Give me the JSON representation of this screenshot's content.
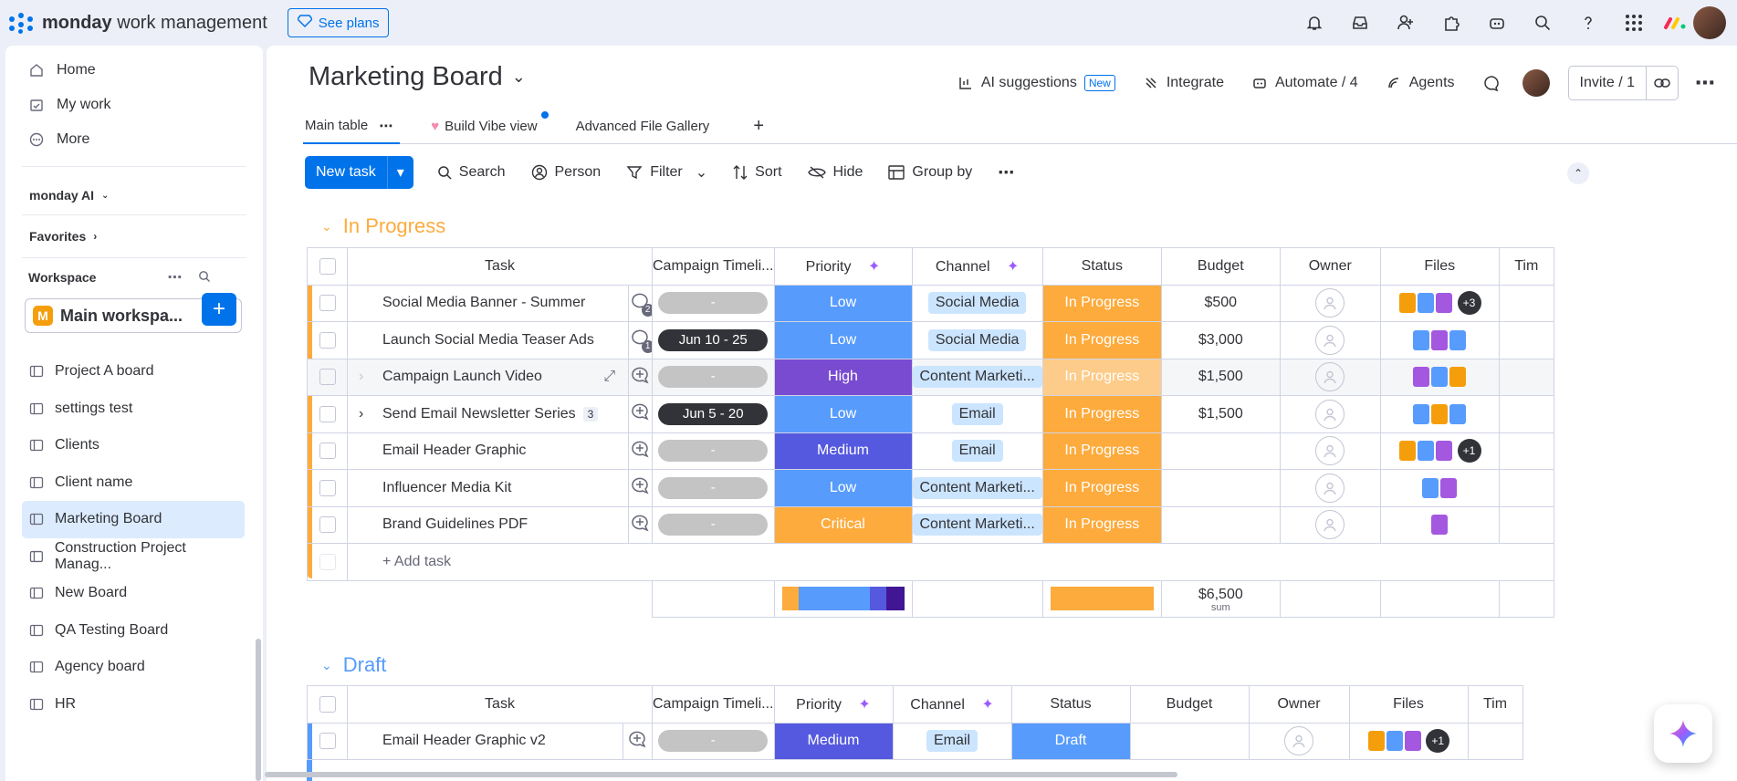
{
  "app": {
    "brand_bold": "monday",
    "brand_rest": " work management",
    "see_plans": "See plans"
  },
  "sidebar": {
    "nav": [
      {
        "label": "Home",
        "icon": "home-icon"
      },
      {
        "label": "My work",
        "icon": "calendar-check-icon"
      },
      {
        "label": "More",
        "icon": "more-circle-icon"
      }
    ],
    "monday_ai": "monday AI",
    "favorites": "Favorites",
    "workspace_label": "Workspace",
    "workspace_name": "Main workspa...",
    "workspace_badge": "M",
    "boards": [
      "Project A board",
      "settings test",
      "Clients",
      "Client name",
      "Marketing Board",
      "Construction Project Manag...",
      "New Board",
      "QA Testing Board",
      "Agency board",
      "HR"
    ]
  },
  "board": {
    "title": "Marketing Board",
    "ai_suggestions": "AI suggestions",
    "new_tag": "New",
    "integrate": "Integrate",
    "automate": "Automate / 4",
    "agents": "Agents",
    "invite": "Invite / 1",
    "tabs": [
      "Main table",
      "Build Vibe view",
      "Advanced File Gallery"
    ],
    "toolbar": {
      "new_task": "New task",
      "search": "Search",
      "person": "Person",
      "filter": "Filter",
      "sort": "Sort",
      "hide": "Hide",
      "group_by": "Group by"
    }
  },
  "columns": [
    "Task",
    "Campaign Timeli...",
    "Priority",
    "Channel",
    "Status",
    "Budget",
    "Owner",
    "Files",
    "Tim"
  ],
  "colors": {
    "in_progress": "#fdab3d",
    "draft": "#579bfc",
    "low": "#579bfc",
    "high": "#784bd1",
    "medium": "#5559df",
    "critical": "#fdab3d",
    "accent": "#0073ea"
  },
  "groups": [
    {
      "title": "In Progress",
      "color": "#fdab3d",
      "rows": [
        {
          "task": "Social Media Banner - Summer",
          "updates": "2",
          "timeline": "-",
          "priority": "Low",
          "channel": "Social Media",
          "status": "In Progress",
          "budget": "$500",
          "files_more": "+3"
        },
        {
          "task": "Launch Social Media Teaser Ads",
          "updates": "1",
          "timeline": "Jun 10 - 25",
          "priority": "Low",
          "channel": "Social Media",
          "status": "In Progress",
          "budget": "$3,000",
          "files_more": ""
        },
        {
          "task": "Campaign Launch Video",
          "updates": "",
          "timeline": "-",
          "priority": "High",
          "channel": "Content Marketi...",
          "status": "In Progress",
          "budget": "$1,500",
          "files_more": ""
        },
        {
          "task": "Send Email Newsletter Series",
          "subitems": "3",
          "updates": "",
          "timeline": "Jun 5 - 20",
          "priority": "Low",
          "channel": "Email",
          "status": "In Progress",
          "budget": "$1,500",
          "files_more": ""
        },
        {
          "task": "Email Header Graphic",
          "updates": "",
          "timeline": "-",
          "priority": "Medium",
          "channel": "Email",
          "status": "In Progress",
          "budget": "",
          "files_more": "+1"
        },
        {
          "task": "Influencer Media Kit",
          "updates": "",
          "timeline": "-",
          "priority": "Low",
          "channel": "Content Marketi...",
          "status": "In Progress",
          "budget": "",
          "files_more": ""
        },
        {
          "task": "Brand Guidelines PDF",
          "updates": "",
          "timeline": "-",
          "priority": "Critical",
          "channel": "Content Marketi...",
          "status": "In Progress",
          "budget": "",
          "files_more": ""
        }
      ],
      "add_task": "+ Add task",
      "budget_sum": "$6,500",
      "sum_label": "sum"
    },
    {
      "title": "Draft",
      "color": "#579bfc",
      "rows": [
        {
          "task": "Email Header Graphic v2",
          "updates": "",
          "timeline": "-",
          "priority": "Medium",
          "channel": "Email",
          "status": "Draft",
          "budget": "",
          "files_more": "+1"
        }
      ]
    }
  ]
}
